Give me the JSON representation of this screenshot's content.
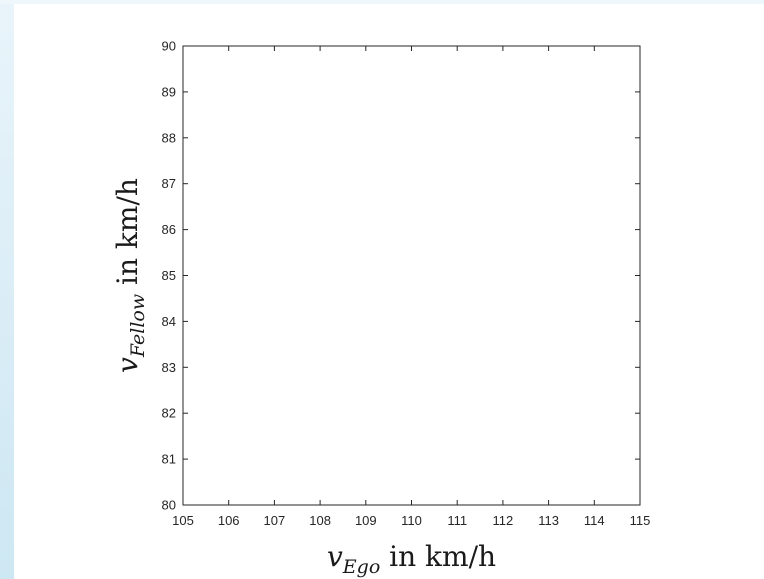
{
  "chart_data": {
    "type": "line",
    "series": [],
    "x": {
      "label_main": "v",
      "label_sub": "Ego",
      "label_rest": " in km/h",
      "lim": [
        105,
        115
      ],
      "ticks": [
        105,
        106,
        107,
        108,
        109,
        110,
        111,
        112,
        113,
        114,
        115
      ]
    },
    "y": {
      "label_main": "v",
      "label_sub": "Fellow",
      "label_rest": " in km/h",
      "lim": [
        80,
        90
      ],
      "ticks": [
        80,
        81,
        82,
        83,
        84,
        85,
        86,
        87,
        88,
        89,
        90
      ]
    },
    "grid": false,
    "colors": {
      "axis": "#262626",
      "background": "#ffffff"
    }
  }
}
